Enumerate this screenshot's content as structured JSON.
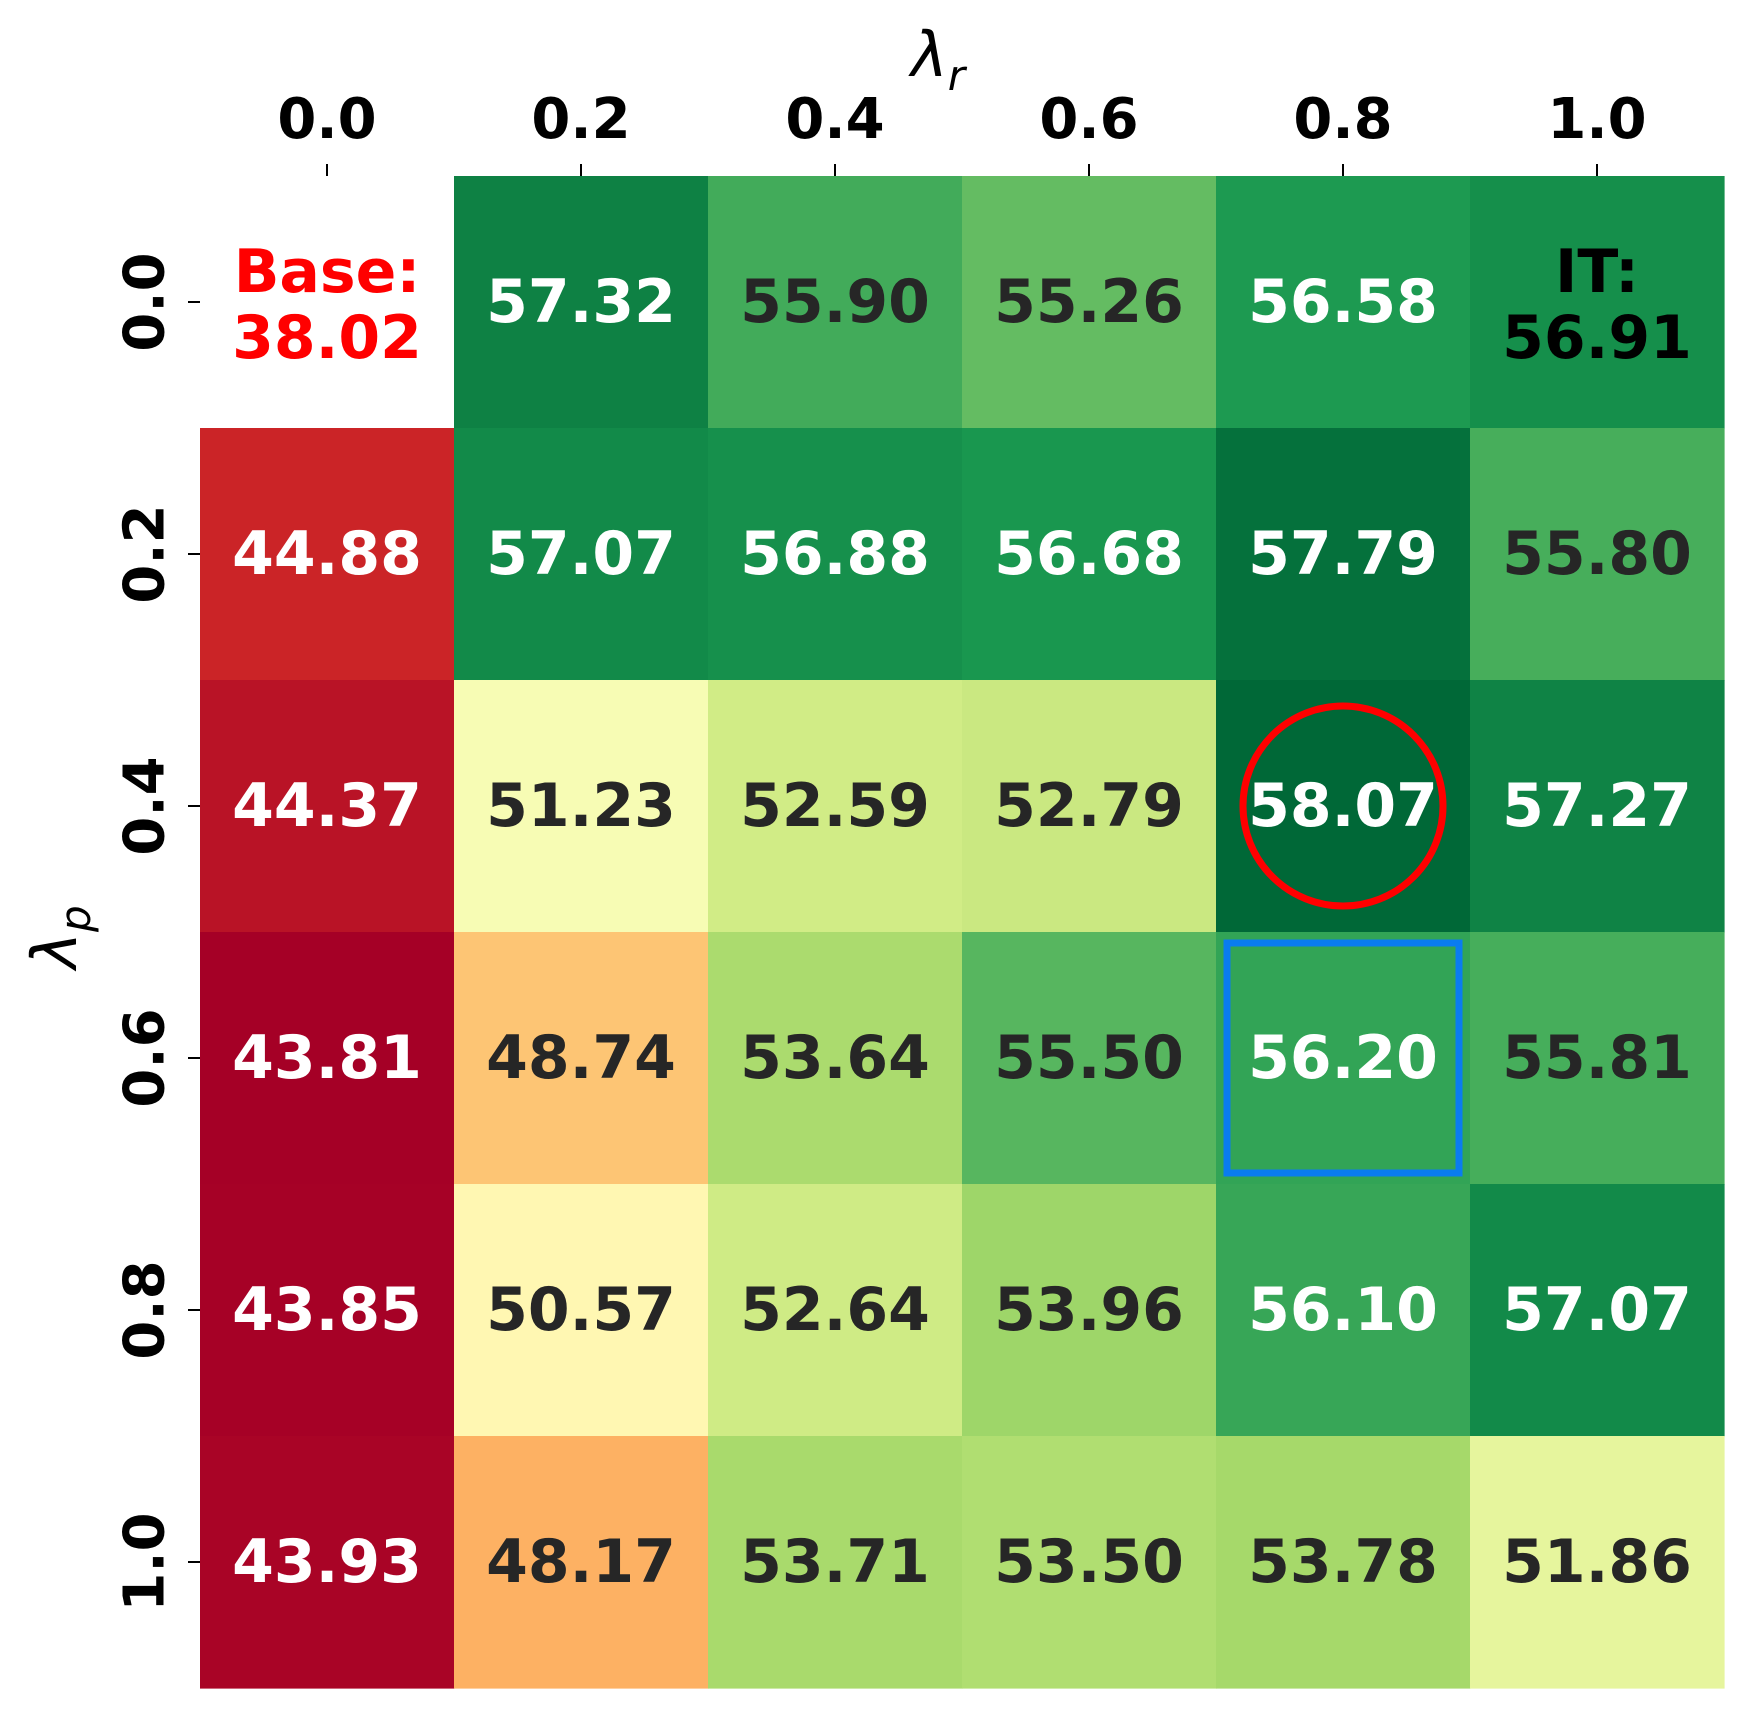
{
  "chart_data": {
    "type": "heatmap",
    "xlabel": "λr",
    "ylabel": "λp",
    "x_ticks": [
      "0.0",
      "0.2",
      "0.4",
      "0.6",
      "0.8",
      "1.0"
    ],
    "y_ticks": [
      "0.0",
      "0.2",
      "0.4",
      "0.6",
      "0.8",
      "1.0"
    ],
    "x_axis_position": "top",
    "colormap": "RdYlGn",
    "color_range": [
      43.81,
      58.07
    ],
    "values": [
      [
        null,
        57.32,
        55.9,
        55.26,
        56.58,
        56.91
      ],
      [
        44.88,
        57.07,
        56.88,
        56.68,
        57.79,
        55.8
      ],
      [
        44.37,
        51.23,
        52.59,
        52.79,
        58.07,
        57.27
      ],
      [
        43.81,
        48.74,
        53.64,
        55.5,
        56.2,
        55.81
      ],
      [
        43.85,
        50.57,
        52.64,
        53.96,
        56.1,
        57.07
      ],
      [
        43.93,
        48.17,
        53.71,
        53.5,
        53.78,
        51.86
      ]
    ],
    "annotations": [
      {
        "row": 0,
        "col": 0,
        "lines": [
          "Base:",
          "38.02"
        ],
        "color": "#ff0000",
        "cell_blank": true
      },
      {
        "row": 0,
        "col": 5,
        "lines": [
          "IT:",
          "56.91"
        ],
        "color": "#000000"
      }
    ],
    "highlights": [
      {
        "row": 2,
        "col": 4,
        "shape": "circle",
        "color": "#ff0000"
      },
      {
        "row": 3,
        "col": 4,
        "shape": "rectangle",
        "color": "#0a7cf0"
      }
    ]
  }
}
